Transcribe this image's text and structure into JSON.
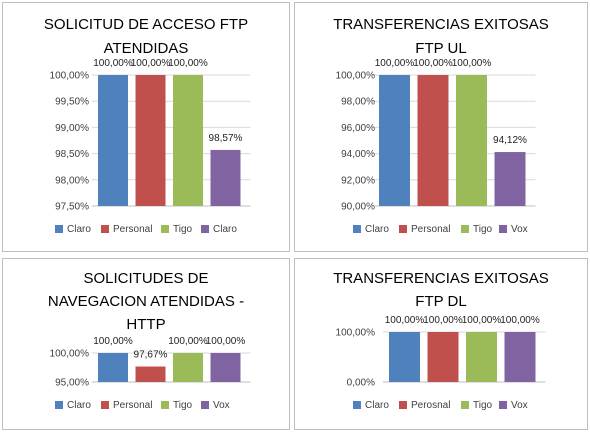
{
  "colors": {
    "blue": "#4f81bd",
    "red": "#c0504d",
    "green": "#9bbb59",
    "purple": "#8064a2"
  },
  "chart_data": [
    {
      "type": "bar",
      "title_lines": [
        "SOLICITUD DE ACCESO FTP",
        "ATENDIDAS"
      ],
      "categories": [
        "Claro",
        "Personal",
        "Tigo",
        "Claro"
      ],
      "values": [
        100.0,
        100.0,
        100.0,
        98.57
      ],
      "data_labels": [
        "100,00%",
        "100,00%",
        "100,00%",
        "98,57%"
      ],
      "ylim": [
        97.5,
        100.0
      ],
      "yticks": [
        97.5,
        98.0,
        98.5,
        99.0,
        99.5,
        100.0
      ],
      "ytick_labels": [
        "97,50%",
        "98,00%",
        "98,50%",
        "99,00%",
        "99,50%",
        "100,00%"
      ],
      "legend": [
        "Claro",
        "Personal",
        "Tigo",
        "Claro"
      ],
      "legend_position": "bottom",
      "grid": true
    },
    {
      "type": "bar",
      "title_lines": [
        "TRANSFERENCIAS EXITOSAS",
        "FTP UL"
      ],
      "categories": [
        "Claro",
        "Personal",
        "Tigo",
        "Vox"
      ],
      "values": [
        100.0,
        100.0,
        100.0,
        94.12
      ],
      "data_labels": [
        "100,00%",
        "100,00%",
        "100,00%",
        "94,12%"
      ],
      "ylim": [
        90.0,
        100.0
      ],
      "yticks": [
        90,
        92,
        94,
        96,
        98,
        100
      ],
      "ytick_labels": [
        "90,00%",
        "92,00%",
        "94,00%",
        "96,00%",
        "98,00%",
        "100,00%"
      ],
      "legend": [
        "Claro",
        "Personal",
        "Tigo",
        "Vox"
      ],
      "legend_position": "bottom",
      "grid": true
    },
    {
      "type": "bar",
      "title_lines": [
        "SOLICITUDES DE",
        "NAVEGACION ATENDIDAS -",
        "HTTP"
      ],
      "categories": [
        "Claro",
        "Personal",
        "Tigo",
        "Vox"
      ],
      "values": [
        100.0,
        97.67,
        100.0,
        100.0
      ],
      "data_labels": [
        "100,00%",
        "97,67%",
        "100,00%",
        "100,00%"
      ],
      "ylim": [
        95.0,
        100.0
      ],
      "yticks": [
        95,
        100
      ],
      "ytick_labels": [
        "95,00%",
        "100,00%"
      ],
      "legend": [
        "Claro",
        "Personal",
        "Tigo",
        "Vox"
      ],
      "legend_position": "bottom",
      "grid": true
    },
    {
      "type": "bar",
      "title_lines": [
        "TRANSFERENCIAS EXITOSAS",
        "FTP DL"
      ],
      "categories": [
        "Claro",
        "Perosnal",
        "Tigo",
        "Vox"
      ],
      "values": [
        100.0,
        100.0,
        100.0,
        100.0
      ],
      "data_labels": [
        "100,00%",
        "100,00%",
        "100,00%",
        "100,00%"
      ],
      "ylim": [
        0.0,
        100.0
      ],
      "yticks": [
        0,
        100
      ],
      "ytick_labels": [
        "0,00%",
        "100,00%"
      ],
      "legend": [
        "Claro",
        "Perosnal",
        "Tigo",
        "Vox"
      ],
      "legend_position": "bottom",
      "grid": true
    }
  ]
}
